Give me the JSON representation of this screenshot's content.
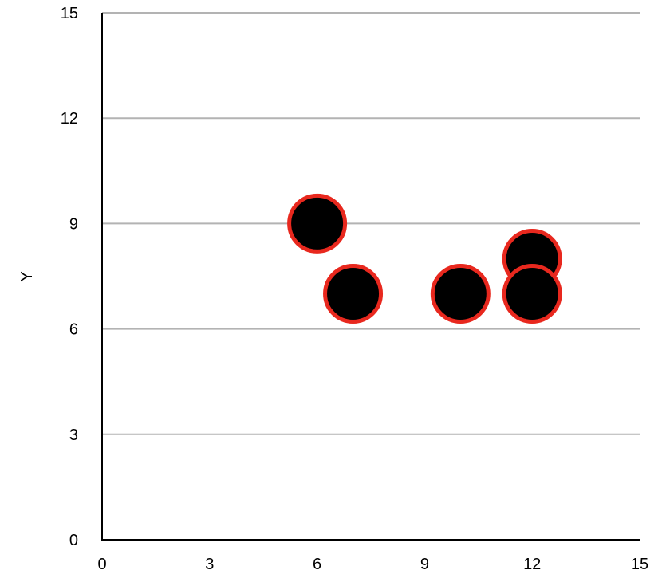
{
  "chart_data": {
    "type": "scatter",
    "title": "",
    "xlabel": "",
    "ylabel": "Y",
    "xlim": [
      0,
      15
    ],
    "ylim": [
      0,
      15
    ],
    "xticks": [
      0,
      3,
      6,
      9,
      12,
      15
    ],
    "yticks": [
      0,
      3,
      6,
      9,
      12,
      15
    ],
    "grid": "horizontal",
    "legend": "none",
    "series": [
      {
        "x": [
          6,
          7,
          10,
          12,
          12
        ],
        "y": [
          9,
          7,
          7,
          8,
          7
        ]
      }
    ],
    "colors": {
      "marker_fill": "#000000",
      "marker_edge": "#e8281e",
      "grid": "#b3b3b3",
      "axis": "#000000"
    }
  }
}
